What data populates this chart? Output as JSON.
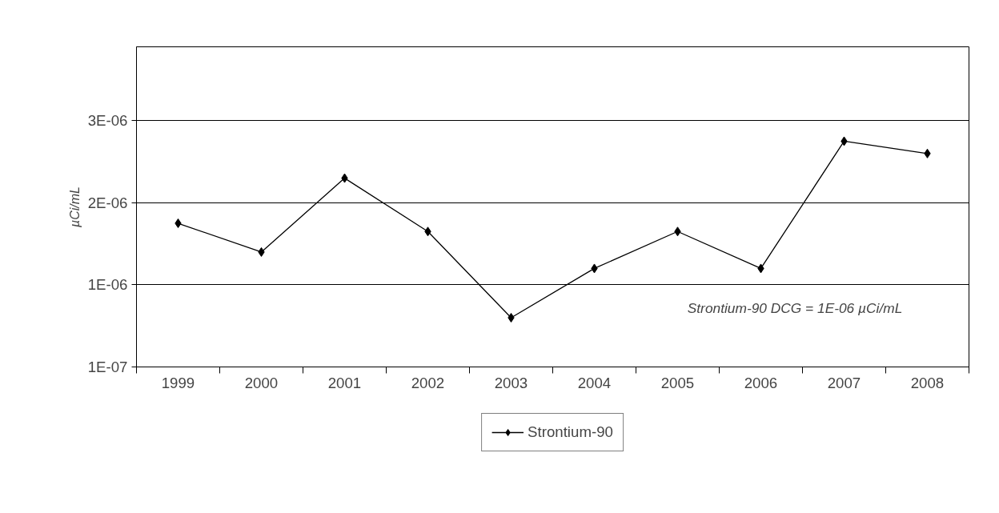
{
  "chart_data": {
    "type": "line",
    "ylabel": "µCi/mL",
    "categories": [
      "1999",
      "2000",
      "2001",
      "2002",
      "2003",
      "2004",
      "2005",
      "2006",
      "2007",
      "2008"
    ],
    "series": [
      {
        "name": "Strontium-90",
        "color": "#000000",
        "values": [
          1.85e-06,
          1.5e-06,
          2.4e-06,
          1.75e-06,
          7e-07,
          1.3e-06,
          1.75e-06,
          1.3e-06,
          2.85e-06,
          2.7e-06
        ]
      }
    ],
    "ylim": [
      1e-07,
      4e-06
    ],
    "yticks": [
      {
        "value": 1e-07,
        "label": "1E-07"
      },
      {
        "value": 1.1e-06,
        "label": "1E-06"
      },
      {
        "value": 2.1e-06,
        "label": "2E-06"
      },
      {
        "value": 3.1e-06,
        "label": "3E-06"
      }
    ],
    "grid": "y",
    "legend": "bottom",
    "marker": "diamond",
    "line_style": "solid",
    "annotations": [
      "Strontium-90 DCG = 1E-06 µCi/mL"
    ]
  }
}
